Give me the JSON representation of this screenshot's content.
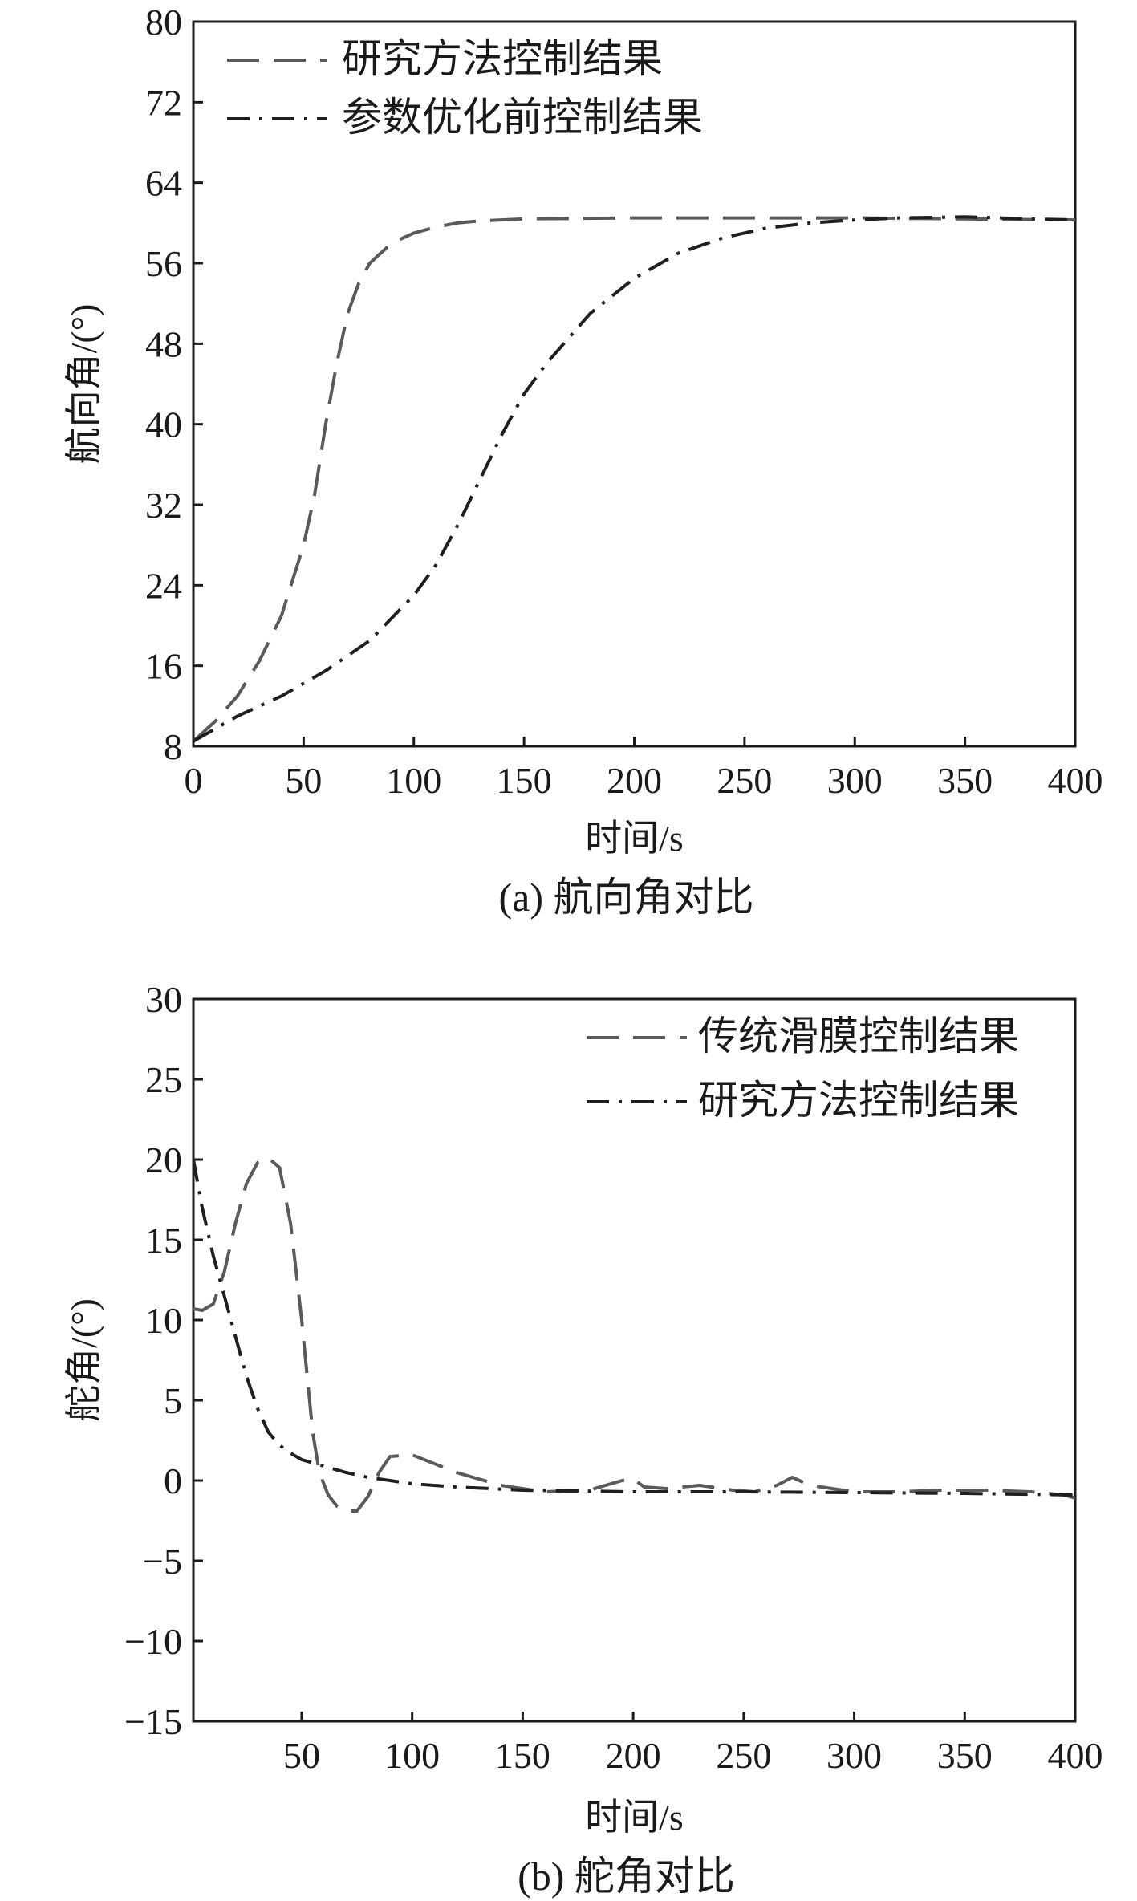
{
  "chart_data": [
    {
      "type": "line",
      "caption": "(a) 航向角对比",
      "xlabel": "时间/s",
      "ylabel": "航向角/(°)",
      "xlim": [
        0,
        400
      ],
      "ylim": [
        8,
        80
      ],
      "xticks": [
        0,
        50,
        100,
        150,
        200,
        250,
        300,
        350,
        400
      ],
      "yticks": [
        8,
        16,
        24,
        32,
        40,
        48,
        56,
        64,
        72,
        80
      ],
      "legend_position": "top-left",
      "grid": false,
      "series": [
        {
          "name": "研究方法控制结果",
          "style": "dashed",
          "color": "#5a5a5a",
          "x": [
            0,
            10,
            20,
            30,
            40,
            50,
            55,
            60,
            65,
            70,
            75,
            80,
            90,
            100,
            110,
            120,
            130,
            150,
            200,
            250,
            300,
            350,
            400
          ],
          "y": [
            8.5,
            10.5,
            13,
            16.5,
            21,
            28,
            33,
            40,
            46,
            51,
            54,
            56,
            58,
            59,
            59.6,
            60,
            60.2,
            60.4,
            60.5,
            60.5,
            60.5,
            60.4,
            60.3
          ]
        },
        {
          "name": "参数优化前控制结果",
          "style": "dashdot",
          "color": "#1f1f1f",
          "x": [
            0,
            20,
            40,
            60,
            80,
            100,
            110,
            120,
            130,
            140,
            150,
            160,
            180,
            200,
            220,
            240,
            260,
            280,
            300,
            320,
            350,
            380,
            400
          ],
          "y": [
            8.5,
            11,
            13,
            15.5,
            18.5,
            23,
            26,
            30,
            34.5,
            39,
            43,
            46,
            51,
            54.5,
            57,
            58.5,
            59.5,
            60,
            60.3,
            60.5,
            60.6,
            60.4,
            60.3
          ]
        }
      ]
    },
    {
      "type": "line",
      "caption": "(b) 舵角对比",
      "xlabel": "时间/s",
      "ylabel": "舵角/(°)",
      "xlim": [
        1,
        400
      ],
      "ylim": [
        -15,
        30
      ],
      "xticks": [
        50,
        100,
        150,
        200,
        250,
        300,
        350,
        400
      ],
      "yticks": [
        -15,
        -10,
        -5,
        0,
        5,
        10,
        15,
        20,
        25,
        30
      ],
      "legend_position": "top-right",
      "grid": false,
      "series": [
        {
          "name": "传统滑膜控制结果",
          "style": "dashed",
          "color": "#5a5a5a",
          "x": [
            1,
            5,
            10,
            15,
            20,
            25,
            30,
            35,
            40,
            45,
            50,
            55,
            58,
            62,
            66,
            70,
            75,
            80,
            85,
            90,
            100,
            120,
            140,
            160,
            180,
            195,
            200,
            205,
            215,
            230,
            245,
            255,
            265,
            272,
            280,
            300,
            320,
            340,
            360,
            380,
            395,
            400
          ],
          "y": [
            10.7,
            10.6,
            11,
            13,
            16,
            18.5,
            19.8,
            20.1,
            19.5,
            16,
            10,
            3,
            0.5,
            -0.9,
            -1.6,
            -1.9,
            -1.9,
            -1.0,
            0.5,
            1.5,
            1.6,
            0.5,
            -0.3,
            -0.7,
            -0.6,
            0,
            0.1,
            -0.4,
            -0.5,
            -0.3,
            -0.6,
            -0.7,
            -0.3,
            0.2,
            -0.3,
            -0.7,
            -0.7,
            -0.6,
            -0.6,
            -0.7,
            -0.9,
            -1.1
          ]
        },
        {
          "name": "研究方法控制结果",
          "style": "dashdot",
          "color": "#1f1f1f",
          "x": [
            1,
            5,
            10,
            15,
            20,
            25,
            30,
            35,
            40,
            45,
            50,
            60,
            70,
            80,
            100,
            120,
            150,
            200,
            250,
            300,
            350,
            400
          ],
          "y": [
            20,
            17,
            14,
            11.5,
            9,
            6.5,
            4.5,
            3,
            2.2,
            1.7,
            1.3,
            0.9,
            0.5,
            0.2,
            -0.2,
            -0.4,
            -0.6,
            -0.7,
            -0.7,
            -0.75,
            -0.8,
            -0.9
          ]
        }
      ]
    }
  ]
}
